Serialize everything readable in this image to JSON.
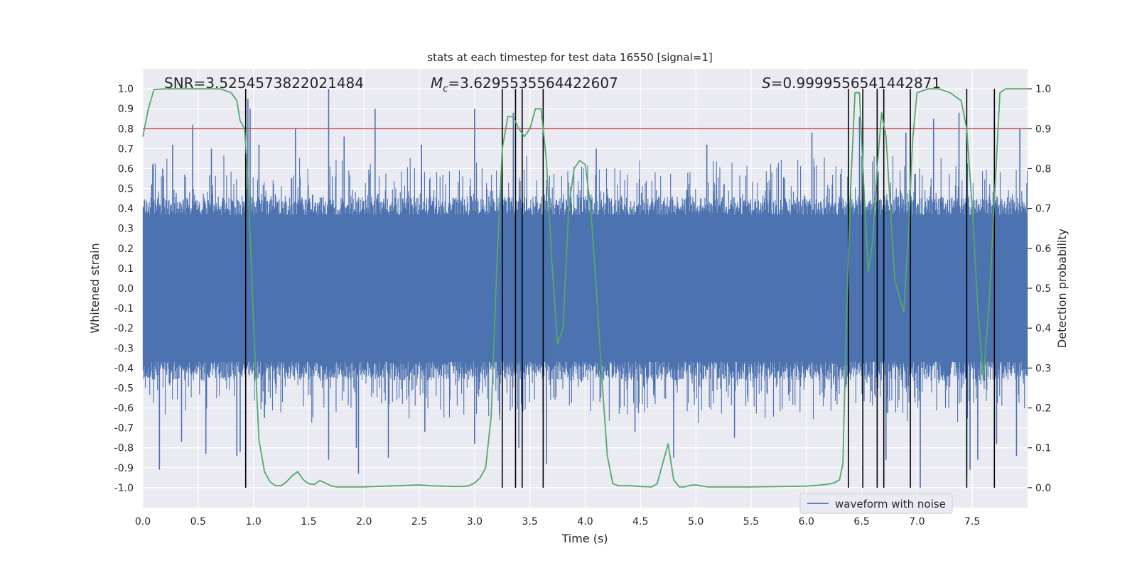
{
  "chart_data": {
    "type": "line",
    "title": "stats at each timestep for test data 16550 [signal=1]",
    "xlabel": "Time (s)",
    "ylabel_left": "Whitened strain",
    "ylabel_right": "Detection probability",
    "xlim": [
      0,
      8
    ],
    "ylim_left": [
      -1.1,
      1.1
    ],
    "ylim_right": [
      -0.05,
      1.05
    ],
    "x_ticks": [
      0.0,
      0.5,
      1.0,
      1.5,
      2.0,
      2.5,
      3.0,
      3.5,
      4.0,
      4.5,
      5.0,
      5.5,
      6.0,
      6.5,
      7.0,
      7.5
    ],
    "y_ticks_left": [
      -1.0,
      -0.9,
      -0.8,
      -0.7,
      -0.6,
      -0.5,
      -0.4,
      -0.3,
      -0.2,
      -0.1,
      0.0,
      0.1,
      0.2,
      0.3,
      0.4,
      0.5,
      0.6,
      0.7,
      0.8,
      0.9,
      1.0
    ],
    "y_ticks_right": [
      0.0,
      0.1,
      0.2,
      0.3,
      0.4,
      0.5,
      0.6,
      0.7,
      0.8,
      0.9,
      1.0
    ],
    "grid": true,
    "annotations": {
      "snr": "SNR=3.5254573822021484",
      "mc_symbol": "M",
      "mc_subscript": "c",
      "mc_value": "=3.6295535564422607",
      "s_symbol": "S",
      "s_value": "=0.9999556541442871"
    },
    "threshold": 0.9,
    "legend": {
      "label": "waveform with noise",
      "placement": "lower-right"
    },
    "waveform": {
      "name": "waveform with noise",
      "color": "#4c72b0",
      "typical_amplitude": 0.42,
      "max_amplitude": 1.0,
      "spikes": [
        {
          "x": 0.08,
          "y": 0.52
        },
        {
          "x": 0.18,
          "y": 0.6
        },
        {
          "x": 0.27,
          "y": 0.72
        },
        {
          "x": 0.45,
          "y": 0.82
        },
        {
          "x": 0.62,
          "y": 0.7
        },
        {
          "x": 0.95,
          "y": 0.95
        },
        {
          "x": 0.97,
          "y": 0.9
        },
        {
          "x": 1.05,
          "y": 0.72
        },
        {
          "x": 1.38,
          "y": 0.8
        },
        {
          "x": 1.68,
          "y": 1.0
        },
        {
          "x": 1.82,
          "y": 0.76
        },
        {
          "x": 2.1,
          "y": 0.9
        },
        {
          "x": 2.52,
          "y": 0.72
        },
        {
          "x": 3.0,
          "y": 0.9
        },
        {
          "x": 3.35,
          "y": 0.88
        },
        {
          "x": 4.1,
          "y": 0.7
        },
        {
          "x": 5.1,
          "y": 0.72
        },
        {
          "x": 6.05,
          "y": 0.78
        },
        {
          "x": 6.48,
          "y": 0.86
        },
        {
          "x": 6.9,
          "y": 0.78
        },
        {
          "x": 7.15,
          "y": 0.85
        },
        {
          "x": 7.38,
          "y": 0.88
        },
        {
          "x": 7.7,
          "y": 0.82
        },
        {
          "x": 7.93,
          "y": 0.8
        },
        {
          "x": 0.15,
          "y": -0.91
        },
        {
          "x": 0.35,
          "y": -0.77
        },
        {
          "x": 0.57,
          "y": -0.83
        },
        {
          "x": 0.85,
          "y": -0.84
        },
        {
          "x": 0.88,
          "y": -0.82
        },
        {
          "x": 1.1,
          "y": -0.65
        },
        {
          "x": 1.68,
          "y": -0.86
        },
        {
          "x": 1.95,
          "y": -0.93
        },
        {
          "x": 1.93,
          "y": -0.8
        },
        {
          "x": 2.22,
          "y": -0.85
        },
        {
          "x": 2.55,
          "y": -0.72
        },
        {
          "x": 3.0,
          "y": -0.78
        },
        {
          "x": 3.4,
          "y": -0.8
        },
        {
          "x": 3.65,
          "y": -0.88
        },
        {
          "x": 4.45,
          "y": -0.72
        },
        {
          "x": 4.8,
          "y": -0.85
        },
        {
          "x": 5.35,
          "y": -0.75
        },
        {
          "x": 6.72,
          "y": -0.86
        },
        {
          "x": 7.03,
          "y": -1.0
        },
        {
          "x": 7.45,
          "y": -0.94
        },
        {
          "x": 7.48,
          "y": -0.91
        },
        {
          "x": 7.55,
          "y": -0.86
        },
        {
          "x": 7.9,
          "y": -0.84
        },
        {
          "x": 7.72,
          "y": -0.78
        }
      ]
    },
    "detection_probability": {
      "name": "detection probability",
      "color": "#55a868",
      "x": [
        0.0,
        0.05,
        0.1,
        0.2,
        0.3,
        0.5,
        0.7,
        0.8,
        0.85,
        0.88,
        0.92,
        0.95,
        1.0,
        1.05,
        1.1,
        1.15,
        1.2,
        1.25,
        1.3,
        1.35,
        1.4,
        1.45,
        1.5,
        1.55,
        1.6,
        1.65,
        1.7,
        1.75,
        1.8,
        1.9,
        2.0,
        2.1,
        2.2,
        2.3,
        2.4,
        2.5,
        2.6,
        2.7,
        2.8,
        2.9,
        2.95,
        3.0,
        3.05,
        3.1,
        3.15,
        3.2,
        3.25,
        3.3,
        3.35,
        3.4,
        3.45,
        3.5,
        3.55,
        3.6,
        3.65,
        3.7,
        3.75,
        3.8,
        3.85,
        3.9,
        3.95,
        4.0,
        4.05,
        4.1,
        4.15,
        4.2,
        4.25,
        4.3,
        4.4,
        4.5,
        4.6,
        4.65,
        4.7,
        4.75,
        4.8,
        4.85,
        4.9,
        4.95,
        5.0,
        5.1,
        5.2,
        5.5,
        5.8,
        6.0,
        6.1,
        6.2,
        6.25,
        6.3,
        6.33,
        6.36,
        6.4,
        6.44,
        6.48,
        6.52,
        6.56,
        6.6,
        6.64,
        6.68,
        6.72,
        6.76,
        6.8,
        6.84,
        6.88,
        6.92,
        6.96,
        7.0,
        7.05,
        7.1,
        7.15,
        7.2,
        7.3,
        7.4,
        7.45,
        7.5,
        7.55,
        7.6,
        7.65,
        7.7,
        7.75,
        7.8,
        7.85,
        7.9,
        7.95,
        8.0
      ],
      "y": [
        0.88,
        0.95,
        0.998,
        1.0,
        1.0,
        1.0,
        1.0,
        0.99,
        0.97,
        0.92,
        0.9,
        0.78,
        0.42,
        0.12,
        0.04,
        0.015,
        0.005,
        0.005,
        0.015,
        0.03,
        0.04,
        0.02,
        0.01,
        0.008,
        0.018,
        0.012,
        0.005,
        0.002,
        0.002,
        0.002,
        0.002,
        0.003,
        0.004,
        0.005,
        0.006,
        0.007,
        0.005,
        0.004,
        0.003,
        0.003,
        0.005,
        0.012,
        0.025,
        0.05,
        0.18,
        0.55,
        0.85,
        0.93,
        0.93,
        0.9,
        0.88,
        0.9,
        0.95,
        0.95,
        0.82,
        0.56,
        0.36,
        0.4,
        0.7,
        0.8,
        0.82,
        0.81,
        0.7,
        0.5,
        0.28,
        0.08,
        0.01,
        0.005,
        0.005,
        0.003,
        0.002,
        0.01,
        0.06,
        0.11,
        0.02,
        0.002,
        0.002,
        0.006,
        0.007,
        0.002,
        0.002,
        0.002,
        0.003,
        0.004,
        0.006,
        0.009,
        0.012,
        0.02,
        0.06,
        0.4,
        0.75,
        0.99,
        0.99,
        0.75,
        0.54,
        0.62,
        0.8,
        0.94,
        0.88,
        0.7,
        0.52,
        0.48,
        0.44,
        0.62,
        0.87,
        0.99,
        0.995,
        1.0,
        1.0,
        1.0,
        0.99,
        0.97,
        0.9,
        0.7,
        0.45,
        0.27,
        0.45,
        0.72,
        0.99,
        1.0,
        1.0,
        1.0,
        1.0,
        1.0
      ],
      "detections": [
        0.93,
        3.25,
        3.37,
        3.43,
        3.62,
        6.38,
        6.51,
        6.64,
        6.7,
        6.94,
        7.45,
        7.7
      ]
    }
  }
}
